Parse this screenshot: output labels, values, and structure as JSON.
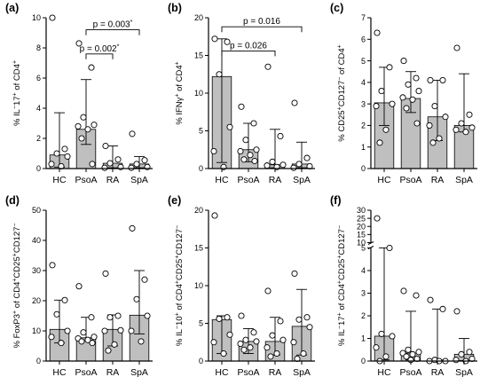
{
  "chart_data": [
    {
      "type": "bar",
      "panel_label": "(a)",
      "ylabel": "% IL-17+ of CD4+",
      "categories": [
        "HC",
        "PsoA",
        "RA",
        "SpA"
      ],
      "ylim": [
        0,
        10
      ],
      "yticks": [
        0,
        2,
        4,
        6,
        8,
        10
      ],
      "bars": [
        0.9,
        2.6,
        0.35,
        0.3
      ],
      "errors": [
        [
          0.1,
          3.7
        ],
        [
          1.6,
          5.9
        ],
        [
          0.05,
          1.5
        ],
        [
          0.05,
          0.8
        ]
      ],
      "points": [
        [
          10,
          1.3,
          1.0,
          0.8,
          0.3,
          0.15
        ],
        [
          8.3,
          6.7,
          3.4,
          2.9,
          2.8,
          2.6,
          2.0,
          0.3
        ],
        [
          1.5,
          0.6,
          0.35,
          0.1,
          0.05
        ],
        [
          2.3,
          0.55,
          0.3,
          0.1,
          0.05
        ]
      ],
      "brackets": [
        {
          "from": 1,
          "to": 2,
          "level": 7.6,
          "text": "p = 0.002*"
        },
        {
          "from": 1,
          "to": 3,
          "level": 9.2,
          "text": "p = 0.003*"
        }
      ]
    },
    {
      "type": "bar",
      "panel_label": "(b)",
      "ylabel": "% IFNγ+ of CD4+",
      "categories": [
        "HC",
        "PsoA",
        "RA",
        "SpA"
      ],
      "ylim": [
        0,
        20
      ],
      "yticks": [
        0,
        5,
        10,
        15,
        20
      ],
      "bars": [
        12.2,
        2.5,
        0.5,
        0.6
      ],
      "errors": [
        [
          0.8,
          17.2
        ],
        [
          0.9,
          6.0
        ],
        [
          0.1,
          5.2
        ],
        [
          0.1,
          3.5
        ]
      ],
      "points": [
        [
          17.2,
          16.8,
          12.5,
          5.5,
          2.3,
          0.2
        ],
        [
          8.2,
          6.0,
          3.8,
          2.5,
          2.3,
          1.8,
          1.2,
          1.0
        ],
        [
          13.5,
          4.3,
          0.9,
          0.5,
          0.4,
          0.2
        ],
        [
          8.7,
          1.4,
          0.6,
          0.3,
          0.1
        ]
      ],
      "brackets": [
        {
          "from": 0,
          "to": 2,
          "level": 15.6,
          "text": "p = 0.026"
        },
        {
          "from": 0,
          "to": 3,
          "level": 18.8,
          "text": "p = 0.016"
        }
      ]
    },
    {
      "type": "bar",
      "panel_label": "(c)",
      "ylabel": "% CD25+CD127- of CD4+",
      "categories": [
        "HC",
        "PsoA",
        "RA",
        "SpA"
      ],
      "ylim": [
        0,
        7
      ],
      "yticks": [
        0,
        1,
        2,
        3,
        4,
        5,
        6,
        7
      ],
      "bars": [
        3.05,
        3.25,
        2.4,
        2.0
      ],
      "errors": [
        [
          2.0,
          4.7
        ],
        [
          2.6,
          4.5
        ],
        [
          1.3,
          4.1
        ],
        [
          1.7,
          4.4
        ]
      ],
      "points": [
        [
          6.3,
          4.7,
          3.6,
          3.0,
          2.9,
          1.8,
          1.2
        ],
        [
          5.0,
          4.2,
          3.9,
          3.6,
          3.3,
          3.2,
          2.8,
          2.1
        ],
        [
          4.1,
          4.1,
          2.9,
          2.4,
          2.0,
          1.4,
          1.2
        ],
        [
          5.6,
          2.5,
          2.1,
          1.9,
          1.8,
          1.7
        ]
      ],
      "brackets": []
    },
    {
      "type": "bar",
      "panel_label": "(d)",
      "ylabel": "% FoxP3+ of CD4+CD25+CD127-",
      "categories": [
        "HC",
        "PsoA",
        "RA",
        "SpA"
      ],
      "ylim": [
        0,
        50
      ],
      "yticks": [
        0,
        10,
        20,
        30,
        40,
        50
      ],
      "bars": [
        10.5,
        7.7,
        10.5,
        15.2
      ],
      "errors": [
        [
          6.0,
          20.2
        ],
        [
          6.8,
          14.5
        ],
        [
          5.0,
          15.3
        ],
        [
          9.0,
          30.0
        ]
      ],
      "points": [
        [
          31.8,
          20.2,
          15.5,
          10.0,
          8.0,
          6.0
        ],
        [
          24.8,
          14.5,
          9.5,
          8.0,
          7.5,
          7.0,
          6.5,
          6.0
        ],
        [
          29.0,
          15.0,
          14.5,
          10.2,
          10.0,
          5.5,
          3.5
        ],
        [
          44.0,
          27.0,
          20.5,
          15.0,
          10.0,
          6.5
        ]
      ],
      "brackets": []
    },
    {
      "type": "bar",
      "panel_label": "(e)",
      "ylabel": "% IL-10+ of CD4+CD25+CD127-",
      "categories": [
        "HC",
        "PsoA",
        "RA",
        "SpA"
      ],
      "ylim": [
        0,
        20
      ],
      "yticks": [
        0,
        5,
        10,
        15,
        20
      ],
      "bars": [
        5.5,
        2.6,
        2.6,
        4.6
      ],
      "errors": [
        [
          1.0,
          6.0
        ],
        [
          1.0,
          4.3
        ],
        [
          0.8,
          5.8
        ],
        [
          0.8,
          9.5
        ]
      ],
      "points": [
        [
          19.3,
          5.8,
          5.6,
          3.5,
          2.5,
          1.0
        ],
        [
          6.0,
          3.8,
          2.8,
          2.6,
          2.3,
          1.8,
          1.5
        ],
        [
          9.3,
          5.3,
          3.4,
          2.8,
          1.8,
          1.0,
          0.6
        ],
        [
          11.6,
          5.8,
          5.5,
          4.5,
          2.5,
          1.0,
          0.3
        ]
      ],
      "brackets": []
    },
    {
      "type": "bar",
      "panel_label": "(f)",
      "ylabel": "% IL-17+ of CD4+CD25+CD127-",
      "categories": [
        "HC",
        "PsoA",
        "RA",
        "SpA"
      ],
      "ylim": [
        0,
        30
      ],
      "yticks": [
        0,
        1,
        2,
        3,
        4,
        5,
        10,
        15,
        20,
        25,
        30
      ],
      "axis_break": [
        5,
        10
      ],
      "bars": [
        1.1,
        0.35,
        0.05,
        0.3
      ],
      "errors": [
        [
          0.05,
          5.0
        ],
        [
          0.05,
          2.2
        ],
        [
          0.02,
          2.3
        ],
        [
          0.02,
          1.0
        ]
      ],
      "points": [
        [
          25.0,
          5.0,
          1.2,
          1.1,
          0.6,
          0.2,
          0.0
        ],
        [
          3.1,
          2.9,
          0.5,
          0.4,
          0.35,
          0.3,
          0.2,
          0.1,
          0.05
        ],
        [
          2.7,
          2.3,
          0.05,
          0.0,
          0.0,
          0.0
        ],
        [
          2.2,
          0.4,
          0.3,
          0.1,
          0.05,
          0.0
        ]
      ],
      "brackets": []
    }
  ],
  "panel_letters": [
    "(a)",
    "(b)",
    "(c)",
    "(d)",
    "(e)",
    "(f)"
  ],
  "colors": {
    "bar": "#bfbfbf",
    "stroke": "#000000",
    "point_fill": "#ffffff"
  }
}
